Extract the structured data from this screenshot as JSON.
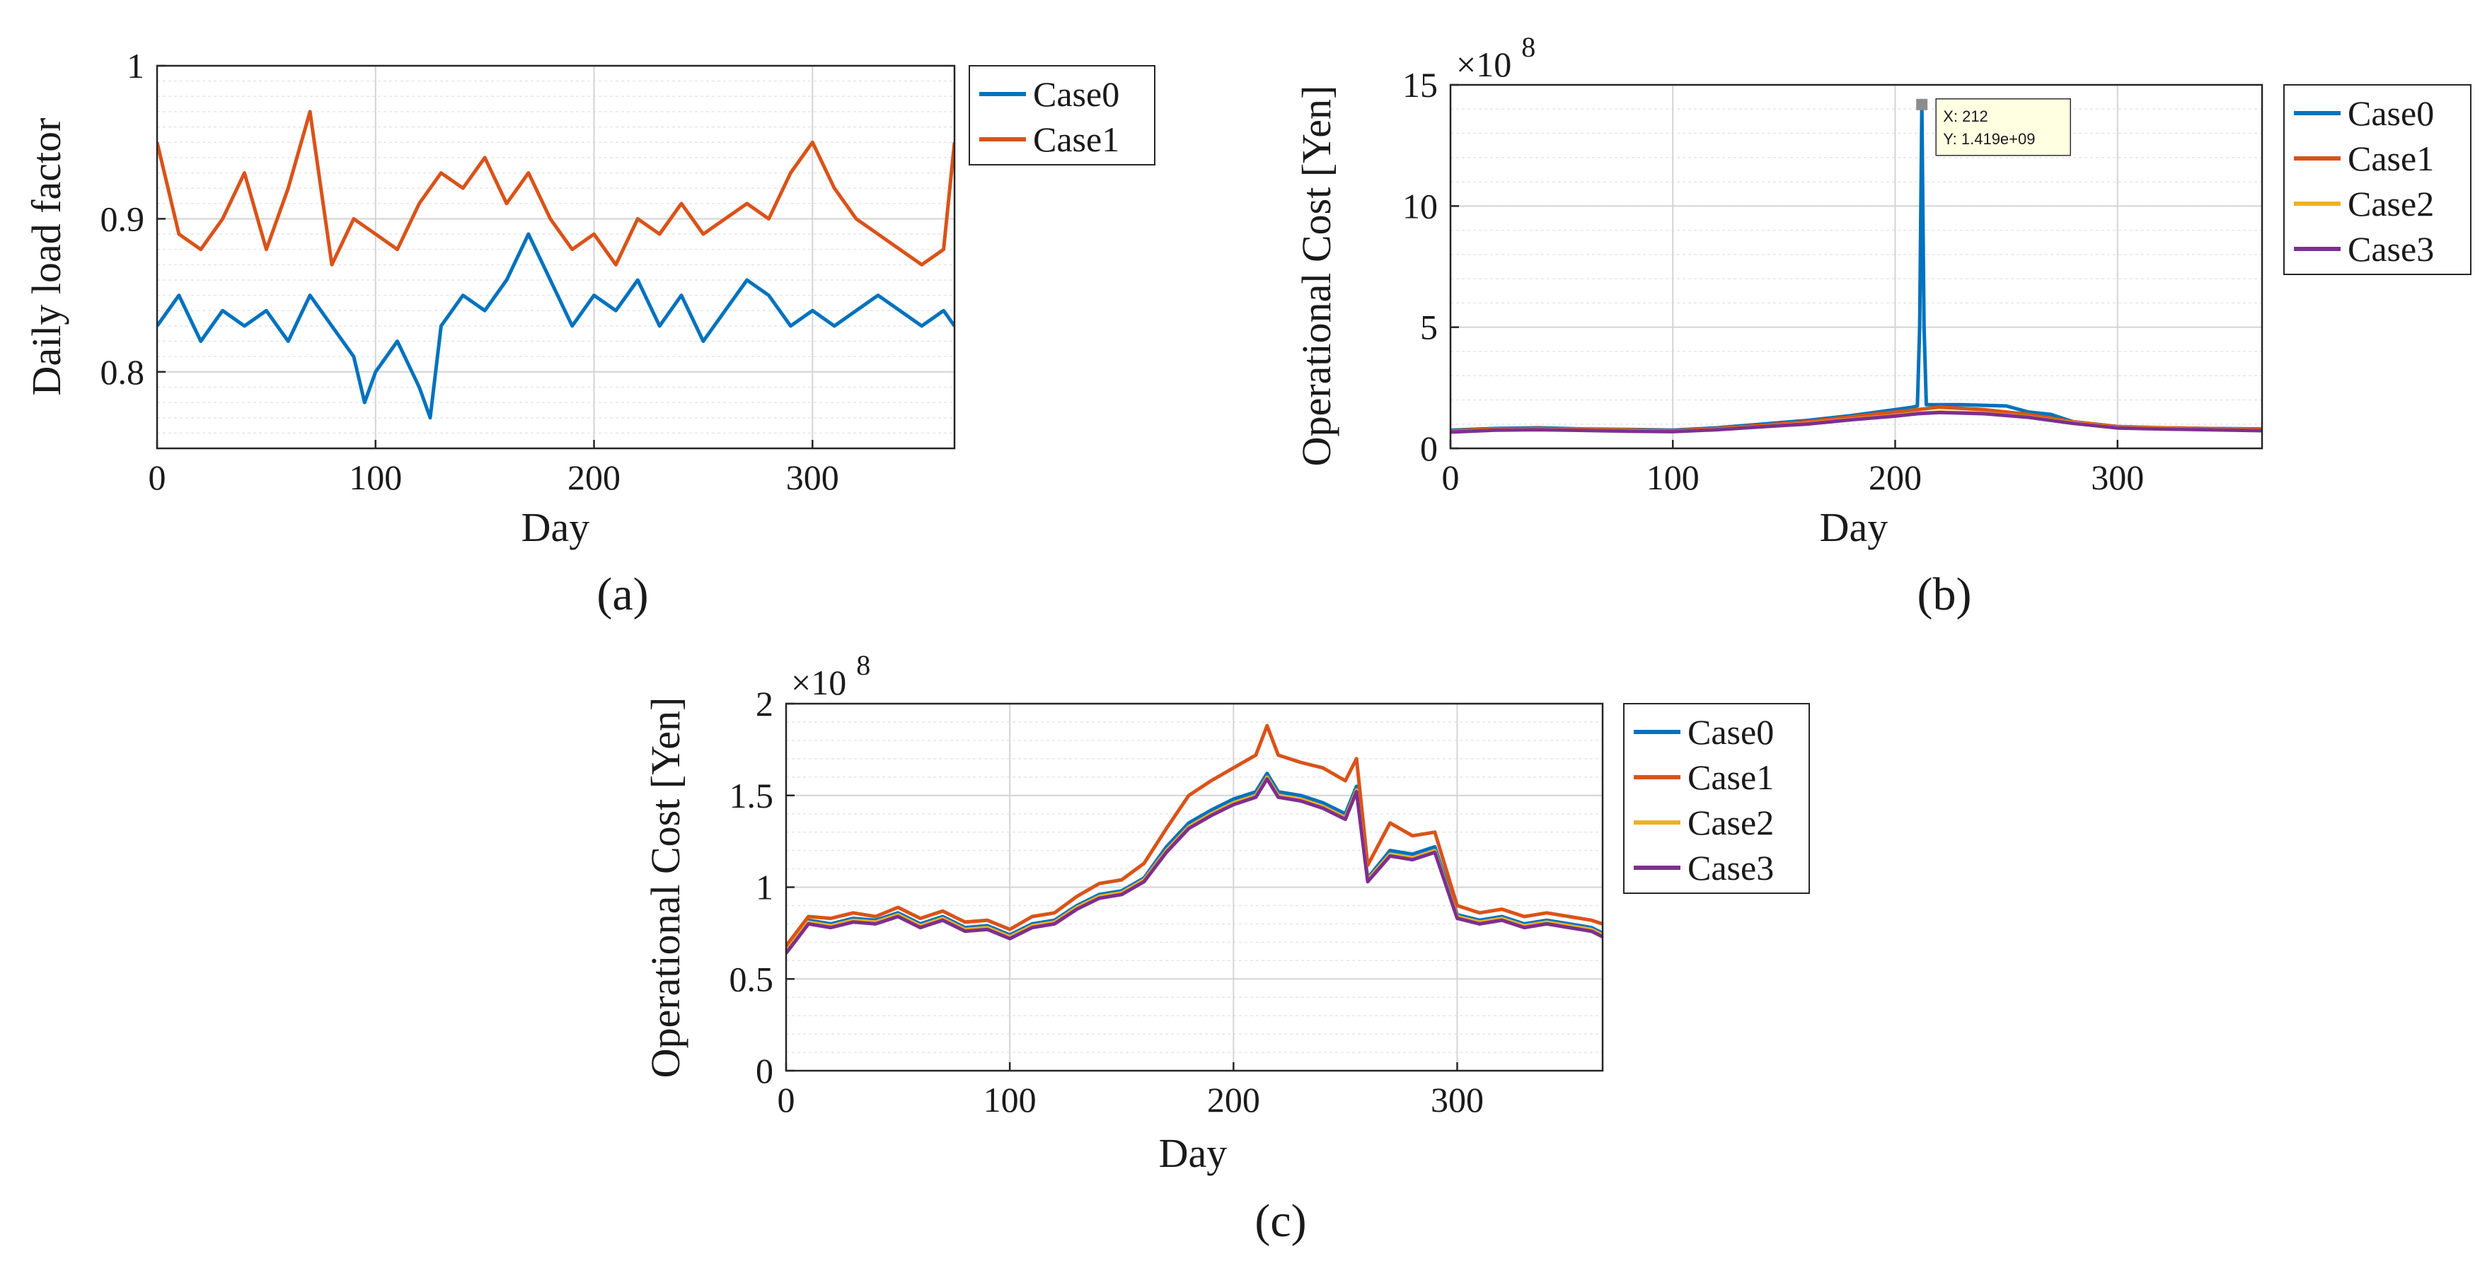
{
  "panels": [
    {
      "caption": "(a)",
      "caption_letter": "a",
      "chart_data": {
        "type": "line",
        "title": "",
        "xlabel": "Day",
        "ylabel": "Daily load factor",
        "xlim": [
          0,
          365
        ],
        "ylim": [
          0.75,
          1.0
        ],
        "x_ticks": [
          0,
          100,
          200,
          300
        ],
        "x_tick_labels": [
          "0",
          "100",
          "200",
          "300"
        ],
        "y_ticks": [
          0.8,
          0.9,
          1.0
        ],
        "y_tick_labels": [
          "0.8",
          "0.9",
          "1"
        ],
        "minor_grid_step": 0.01,
        "exponent_label": "",
        "legend_position": "outside-top-right",
        "series": [
          {
            "name": "Case0",
            "color": "#0072BD",
            "x": [
              0,
              10,
              20,
              30,
              40,
              50,
              60,
              70,
              80,
              90,
              95,
              100,
              110,
              120,
              125,
              130,
              140,
              150,
              160,
              170,
              180,
              190,
              200,
              210,
              220,
              230,
              240,
              250,
              260,
              270,
              280,
              290,
              300,
              310,
              320,
              330,
              340,
              350,
              360,
              365
            ],
            "values": [
              0.83,
              0.85,
              0.82,
              0.84,
              0.83,
              0.84,
              0.82,
              0.85,
              0.83,
              0.81,
              0.78,
              0.8,
              0.82,
              0.79,
              0.77,
              0.83,
              0.85,
              0.84,
              0.86,
              0.89,
              0.86,
              0.83,
              0.85,
              0.84,
              0.86,
              0.83,
              0.85,
              0.82,
              0.84,
              0.86,
              0.85,
              0.83,
              0.84,
              0.83,
              0.84,
              0.85,
              0.84,
              0.83,
              0.84,
              0.83
            ]
          },
          {
            "name": "Case1",
            "color": "#D95319",
            "x": [
              0,
              10,
              20,
              30,
              40,
              50,
              60,
              70,
              80,
              90,
              100,
              110,
              120,
              130,
              140,
              150,
              160,
              170,
              180,
              190,
              200,
              210,
              220,
              230,
              240,
              250,
              260,
              270,
              280,
              290,
              300,
              310,
              320,
              330,
              340,
              350,
              360,
              365
            ],
            "values": [
              0.95,
              0.89,
              0.88,
              0.9,
              0.93,
              0.88,
              0.92,
              0.97,
              0.87,
              0.9,
              0.89,
              0.88,
              0.91,
              0.93,
              0.92,
              0.94,
              0.91,
              0.93,
              0.9,
              0.88,
              0.89,
              0.87,
              0.9,
              0.89,
              0.91,
              0.89,
              0.9,
              0.91,
              0.9,
              0.93,
              0.95,
              0.92,
              0.9,
              0.89,
              0.88,
              0.87,
              0.88,
              0.95
            ]
          }
        ]
      }
    },
    {
      "caption": "(b)",
      "caption_letter": "b",
      "chart_data": {
        "type": "line",
        "title": "",
        "xlabel": "Day",
        "ylabel": "Operational Cost [Yen]",
        "xlim": [
          0,
          365
        ],
        "ylim": [
          0,
          15
        ],
        "x_ticks": [
          0,
          100,
          200,
          300
        ],
        "x_tick_labels": [
          "0",
          "100",
          "200",
          "300"
        ],
        "y_ticks": [
          0,
          5,
          10,
          15
        ],
        "y_tick_labels": [
          "0",
          "5",
          "10",
          "15"
        ],
        "minor_grid_step": 1,
        "exponent_label": "×10",
        "exponent_power": "8",
        "legend_position": "outside-top-right",
        "datatip": {
          "x": 212,
          "y": 14.19,
          "line1": "X: 212",
          "line2": "Y: 1.419e+09"
        },
        "series": [
          {
            "name": "Case0",
            "color": "#0072BD",
            "x": [
              0,
              20,
              40,
              60,
              80,
              100,
              120,
              140,
              160,
              180,
              200,
              208,
              210,
              211,
              212,
              213,
              214,
              216,
              230,
              250,
              260,
              270,
              280,
              290,
              300,
              320,
              340,
              365
            ],
            "values": [
              0.75,
              0.82,
              0.85,
              0.8,
              0.78,
              0.75,
              0.85,
              1.0,
              1.15,
              1.35,
              1.6,
              1.7,
              1.75,
              5.0,
              14.19,
              5.0,
              1.8,
              1.8,
              1.8,
              1.75,
              1.5,
              1.4,
              1.1,
              1.0,
              0.9,
              0.85,
              0.82,
              0.8
            ]
          },
          {
            "name": "Case1",
            "color": "#D95319",
            "x": [
              0,
              20,
              40,
              60,
              80,
              100,
              120,
              140,
              160,
              180,
              200,
              210,
              220,
              240,
              260,
              280,
              300,
              320,
              340,
              365
            ],
            "values": [
              0.72,
              0.8,
              0.82,
              0.78,
              0.76,
              0.72,
              0.82,
              0.95,
              1.1,
              1.3,
              1.5,
              1.6,
              1.7,
              1.6,
              1.4,
              1.1,
              0.9,
              0.85,
              0.82,
              0.78
            ]
          },
          {
            "name": "Case2",
            "color": "#EDB120",
            "x": [
              0,
              20,
              40,
              60,
              80,
              100,
              120,
              140,
              160,
              180,
              200,
              210,
              220,
              240,
              260,
              280,
              300,
              320,
              340,
              365
            ],
            "values": [
              0.68,
              0.76,
              0.78,
              0.75,
              0.72,
              0.7,
              0.78,
              0.9,
              1.02,
              1.2,
              1.35,
              1.45,
              1.5,
              1.45,
              1.3,
              1.05,
              0.85,
              0.82,
              0.78,
              0.74
            ]
          },
          {
            "name": "Case3",
            "color": "#7E2F8E",
            "x": [
              0,
              20,
              40,
              60,
              80,
              100,
              120,
              140,
              160,
              180,
              200,
              210,
              220,
              240,
              260,
              280,
              300,
              320,
              340,
              365
            ],
            "values": [
              0.67,
              0.75,
              0.77,
              0.74,
              0.71,
              0.69,
              0.77,
              0.89,
              1.0,
              1.18,
              1.33,
              1.43,
              1.48,
              1.43,
              1.28,
              1.03,
              0.84,
              0.8,
              0.77,
              0.73
            ]
          }
        ]
      }
    },
    {
      "caption": "(c)",
      "caption_letter": "c",
      "chart_data": {
        "type": "line",
        "title": "",
        "xlabel": "Day",
        "ylabel": "Operational Cost [Yen]",
        "xlim": [
          0,
          365
        ],
        "ylim": [
          0,
          2
        ],
        "x_ticks": [
          0,
          100,
          200,
          300
        ],
        "x_tick_labels": [
          "0",
          "100",
          "200",
          "300"
        ],
        "y_ticks": [
          0,
          0.5,
          1,
          1.5,
          2
        ],
        "y_tick_labels": [
          "0",
          "0.5",
          "1",
          "1.5",
          "2"
        ],
        "minor_grid_step": 0.1,
        "exponent_label": "×10",
        "exponent_power": "8",
        "legend_position": "outside-top-right",
        "series": [
          {
            "name": "Case0",
            "color": "#0072BD",
            "x": [
              0,
              10,
              20,
              30,
              40,
              50,
              60,
              70,
              80,
              90,
              100,
              110,
              120,
              130,
              140,
              150,
              160,
              170,
              180,
              190,
              200,
              210,
              215,
              220,
              230,
              240,
              250,
              255,
              260,
              270,
              280,
              290,
              300,
              310,
              320,
              330,
              340,
              350,
              360,
              365
            ],
            "values": [
              0.66,
              0.82,
              0.8,
              0.83,
              0.82,
              0.86,
              0.8,
              0.84,
              0.78,
              0.79,
              0.74,
              0.8,
              0.82,
              0.9,
              0.96,
              0.98,
              1.05,
              1.22,
              1.35,
              1.42,
              1.48,
              1.52,
              1.62,
              1.52,
              1.5,
              1.46,
              1.4,
              1.55,
              1.05,
              1.2,
              1.18,
              1.22,
              0.85,
              0.82,
              0.84,
              0.8,
              0.82,
              0.8,
              0.78,
              0.75
            ]
          },
          {
            "name": "Case1",
            "color": "#D95319",
            "x": [
              0,
              10,
              20,
              30,
              40,
              50,
              60,
              70,
              80,
              90,
              100,
              110,
              120,
              130,
              140,
              150,
              160,
              170,
              180,
              190,
              200,
              210,
              215,
              220,
              230,
              240,
              250,
              255,
              260,
              270,
              280,
              290,
              300,
              310,
              320,
              330,
              340,
              350,
              360,
              365
            ],
            "values": [
              0.68,
              0.84,
              0.83,
              0.86,
              0.84,
              0.89,
              0.83,
              0.87,
              0.81,
              0.82,
              0.77,
              0.84,
              0.86,
              0.95,
              1.02,
              1.04,
              1.13,
              1.32,
              1.5,
              1.58,
              1.65,
              1.72,
              1.88,
              1.72,
              1.68,
              1.65,
              1.58,
              1.7,
              1.12,
              1.35,
              1.28,
              1.3,
              0.9,
              0.86,
              0.88,
              0.84,
              0.86,
              0.84,
              0.82,
              0.8
            ]
          },
          {
            "name": "Case2",
            "color": "#EDB120",
            "x": [
              0,
              10,
              20,
              30,
              40,
              50,
              60,
              70,
              80,
              90,
              100,
              110,
              120,
              130,
              140,
              150,
              160,
              170,
              180,
              190,
              200,
              210,
              215,
              220,
              230,
              240,
              250,
              255,
              260,
              270,
              280,
              290,
              300,
              310,
              320,
              330,
              340,
              350,
              360,
              365
            ],
            "values": [
              0.65,
              0.81,
              0.79,
              0.82,
              0.81,
              0.85,
              0.79,
              0.83,
              0.77,
              0.78,
              0.73,
              0.79,
              0.81,
              0.89,
              0.95,
              0.97,
              1.04,
              1.2,
              1.33,
              1.4,
              1.46,
              1.5,
              1.6,
              1.5,
              1.48,
              1.44,
              1.38,
              1.53,
              1.04,
              1.18,
              1.16,
              1.2,
              0.84,
              0.81,
              0.83,
              0.79,
              0.81,
              0.79,
              0.77,
              0.74
            ]
          },
          {
            "name": "Case3",
            "color": "#7E2F8E",
            "x": [
              0,
              10,
              20,
              30,
              40,
              50,
              60,
              70,
              80,
              90,
              100,
              110,
              120,
              130,
              140,
              150,
              160,
              170,
              180,
              190,
              200,
              210,
              215,
              220,
              230,
              240,
              250,
              255,
              260,
              270,
              280,
              290,
              300,
              310,
              320,
              330,
              340,
              350,
              360,
              365
            ],
            "values": [
              0.64,
              0.8,
              0.78,
              0.81,
              0.8,
              0.84,
              0.78,
              0.82,
              0.76,
              0.77,
              0.72,
              0.78,
              0.8,
              0.88,
              0.94,
              0.96,
              1.03,
              1.19,
              1.32,
              1.39,
              1.45,
              1.49,
              1.59,
              1.49,
              1.47,
              1.43,
              1.37,
              1.52,
              1.03,
              1.17,
              1.15,
              1.19,
              0.83,
              0.8,
              0.82,
              0.78,
              0.8,
              0.78,
              0.76,
              0.73
            ]
          }
        ]
      }
    }
  ]
}
